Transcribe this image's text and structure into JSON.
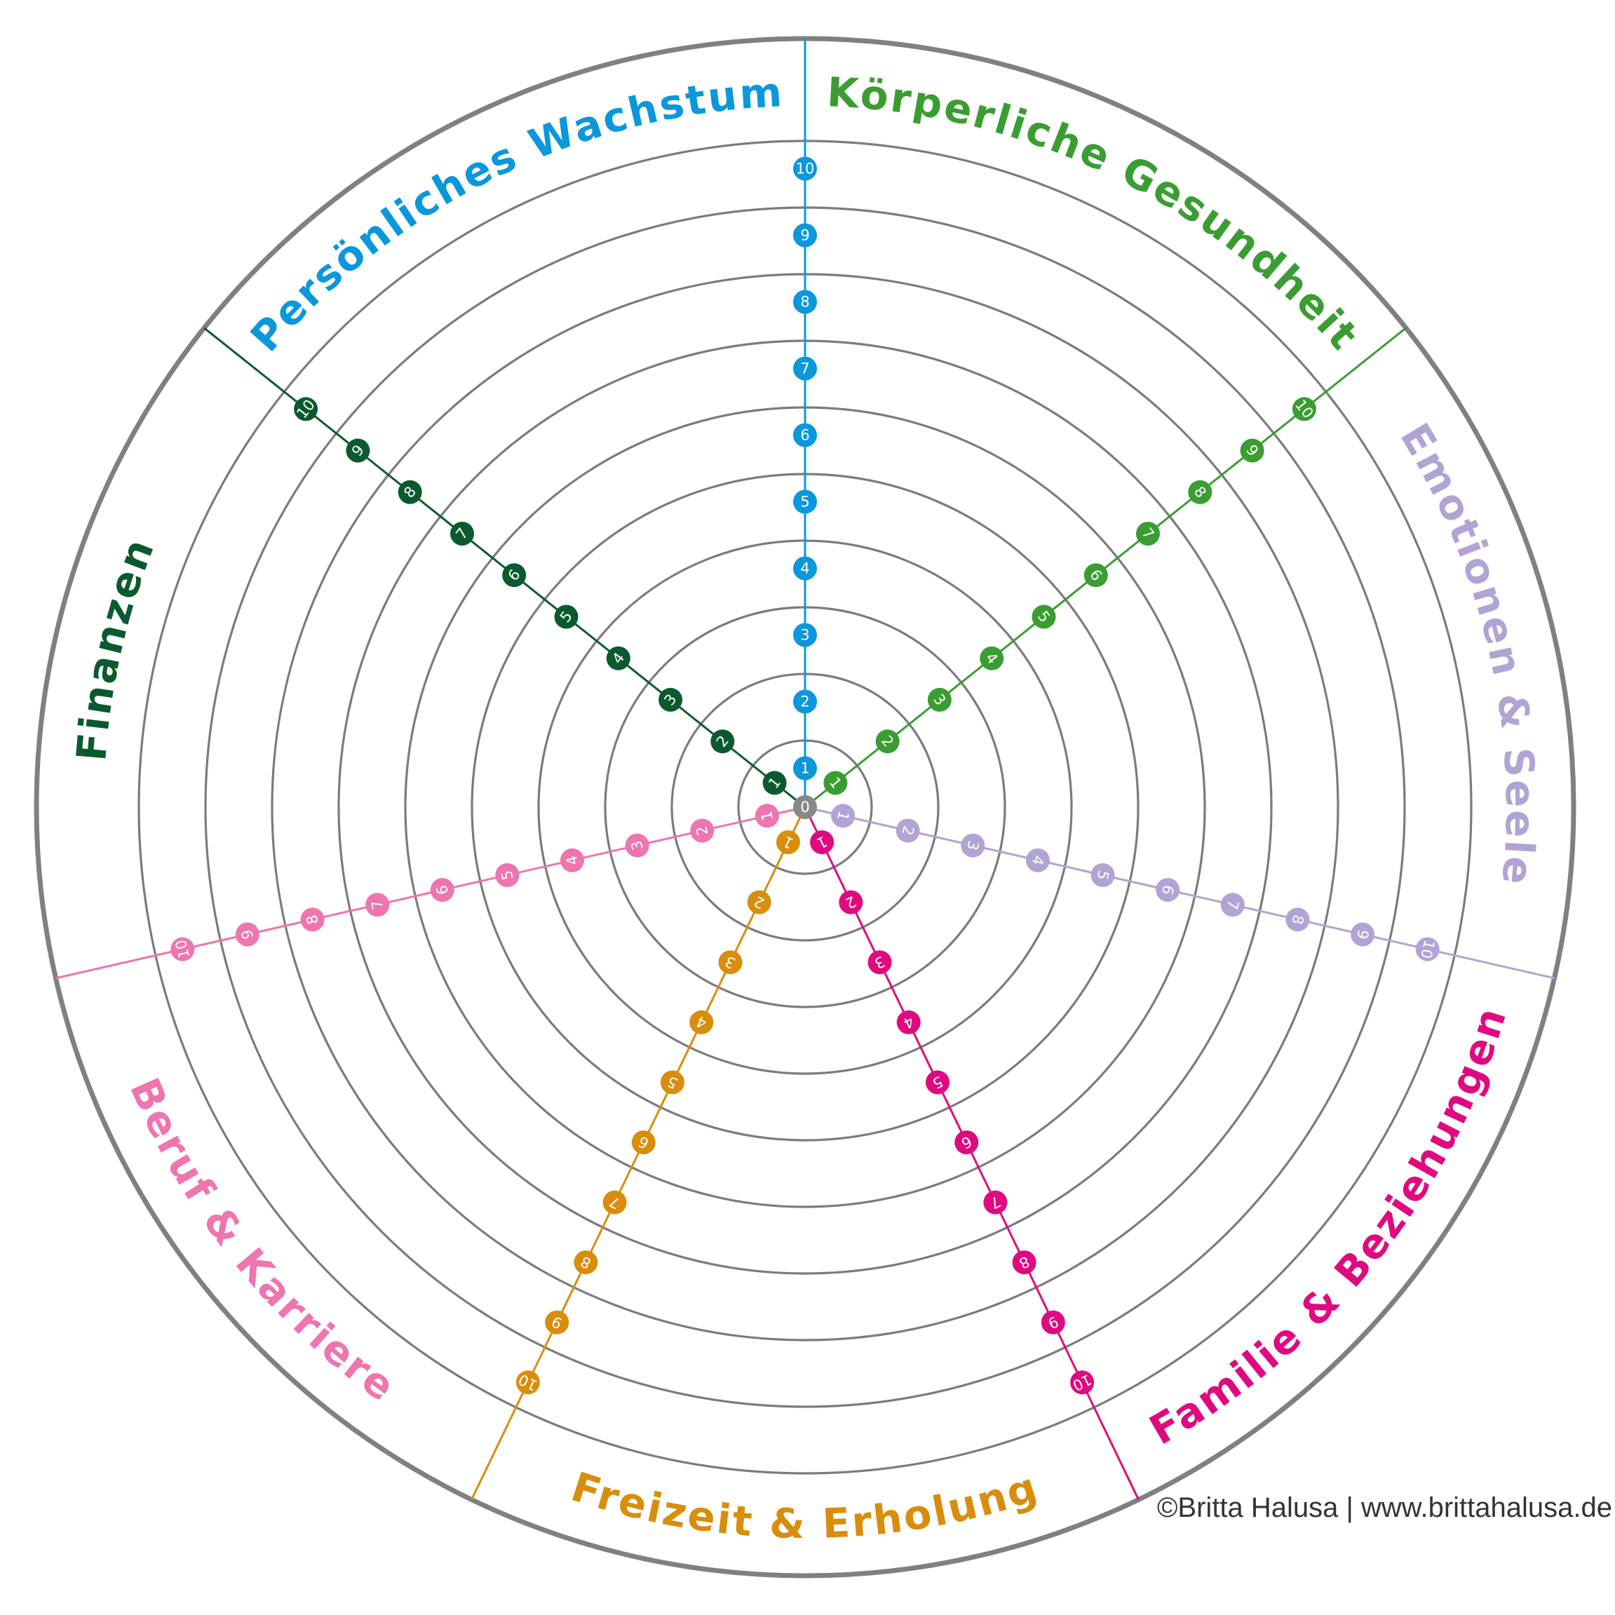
{
  "colors": {
    "outer_rim": "#808080",
    "ring": "#7b7b7b",
    "center_marker": "#888888"
  },
  "center_label": "0",
  "scale_labels": [
    "1",
    "2",
    "3",
    "4",
    "5",
    "6",
    "7",
    "8",
    "9",
    "10"
  ],
  "segments": [
    {
      "title": "Persönliches Wachstum",
      "color": "#0a97dc"
    },
    {
      "title": "Körperliche Gesundheit",
      "color": "#3a9d32"
    },
    {
      "title": "Emotionen & Seele",
      "color": "#b1a4d4"
    },
    {
      "title": "Familie & Beziehungen",
      "color": "#df0a7f"
    },
    {
      "title": "Freizeit & Erholung",
      "color": "#d98d0c"
    },
    {
      "title": "Beruf & Karriere",
      "color": "#ee75ad"
    },
    {
      "title": "Finanzen",
      "color": "#0b5a2f"
    }
  ],
  "footer": {
    "copyright": "©Britta Halusa | www.brittahalusa.de"
  }
}
